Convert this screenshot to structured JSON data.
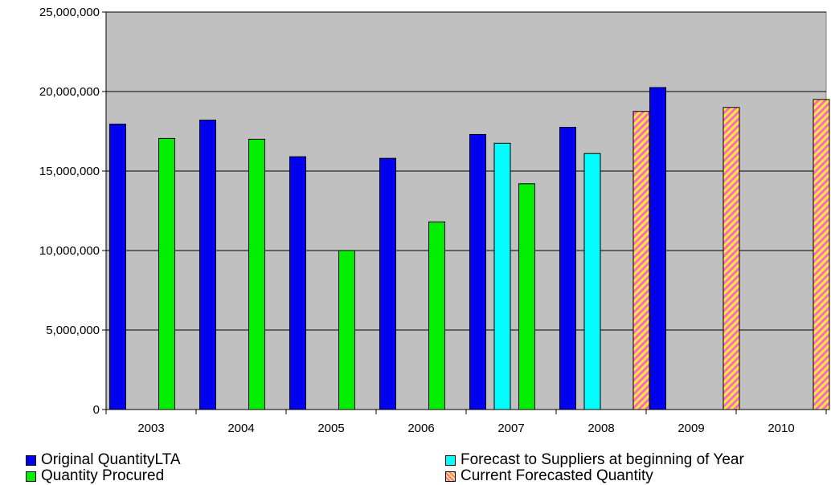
{
  "chart_data": {
    "type": "bar",
    "categories": [
      "2003",
      "2004",
      "2005",
      "2006",
      "2007",
      "2008",
      "2009",
      "2010"
    ],
    "series": [
      {
        "name": "Original QuantityLTA",
        "color": "#0000ee",
        "pattern": "solid",
        "values": [
          17950000,
          18200000,
          15900000,
          15800000,
          17300000,
          17750000,
          20250000,
          null
        ]
      },
      {
        "name": "Forecast to Suppliers at beginning of Year",
        "color": "#00ffff",
        "pattern": "solid",
        "values": [
          null,
          null,
          null,
          null,
          16750000,
          16100000,
          null,
          null
        ]
      },
      {
        "name": "Quantity Procured",
        "color": "#00ee00",
        "pattern": "solid",
        "values": [
          17050000,
          17000000,
          10000000,
          11800000,
          14200000,
          null,
          null,
          null
        ]
      },
      {
        "name": "Current Forecasted Quantity",
        "color": "#ff66cc",
        "pattern": "hatch",
        "hatch_color": "#ffee33",
        "values": [
          null,
          null,
          null,
          null,
          null,
          18750000,
          19000000,
          19500000
        ]
      }
    ],
    "ylim": [
      0,
      25000000
    ],
    "yticks": [
      0,
      5000000,
      10000000,
      15000000,
      20000000,
      25000000
    ],
    "ytick_labels": [
      "0",
      "5,000,000",
      "10,000,000",
      "15,000,000",
      "20,000,000",
      "25,000,000"
    ],
    "grid": true,
    "plot_background": "#c0c0c0",
    "legend_position": "bottom",
    "title": "",
    "xlabel": "",
    "ylabel": ""
  }
}
